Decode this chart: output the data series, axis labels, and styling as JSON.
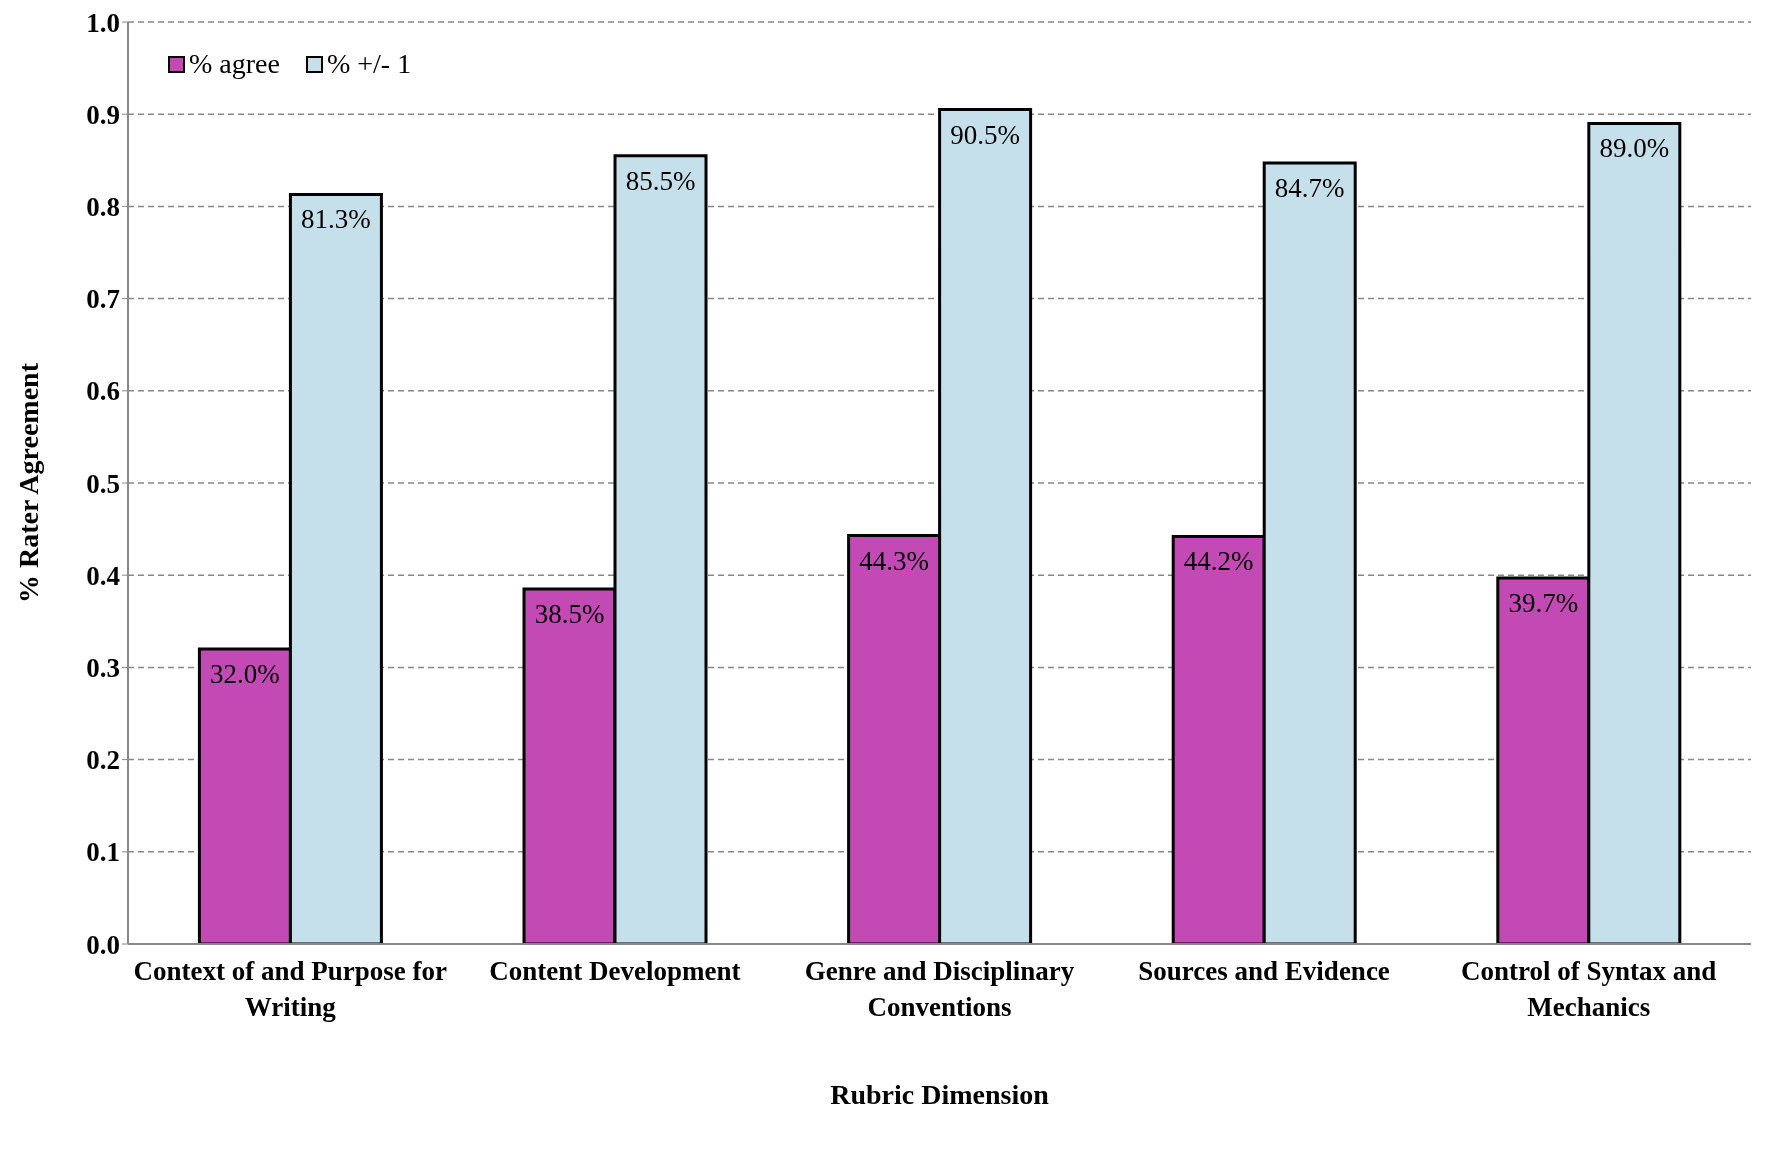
{
  "chart_data": {
    "type": "bar",
    "xlabel": "Rubric Dimension",
    "ylabel": "% Rater Agreement",
    "categories": [
      "Context of and Purpose for Writing",
      "Content Development",
      "Genre and Disciplinary Conventions",
      "Sources and Evidence",
      "Control of Syntax and Mechanics"
    ],
    "series": [
      {
        "name": "% agree",
        "color": "#c34ab4",
        "values": [
          0.32,
          0.385,
          0.443,
          0.442,
          0.397
        ],
        "value_labels": [
          "32.0%",
          "38.5%",
          "44.3%",
          "44.2%",
          "39.7%"
        ]
      },
      {
        "name": "% +/- 1",
        "color": "#c5e0ea",
        "values": [
          0.813,
          0.855,
          0.905,
          0.847,
          0.89
        ],
        "value_labels": [
          "81.3%",
          "85.5%",
          "90.5%",
          "84.7%",
          "89.0%"
        ]
      }
    ],
    "ylim": [
      0,
      1
    ],
    "yticks": [
      "0.0",
      "0.1",
      "0.2",
      "0.3",
      "0.4",
      "0.5",
      "0.6",
      "0.7",
      "0.8",
      "0.9",
      "1.0"
    ],
    "grid": "y",
    "legend": "top left"
  }
}
